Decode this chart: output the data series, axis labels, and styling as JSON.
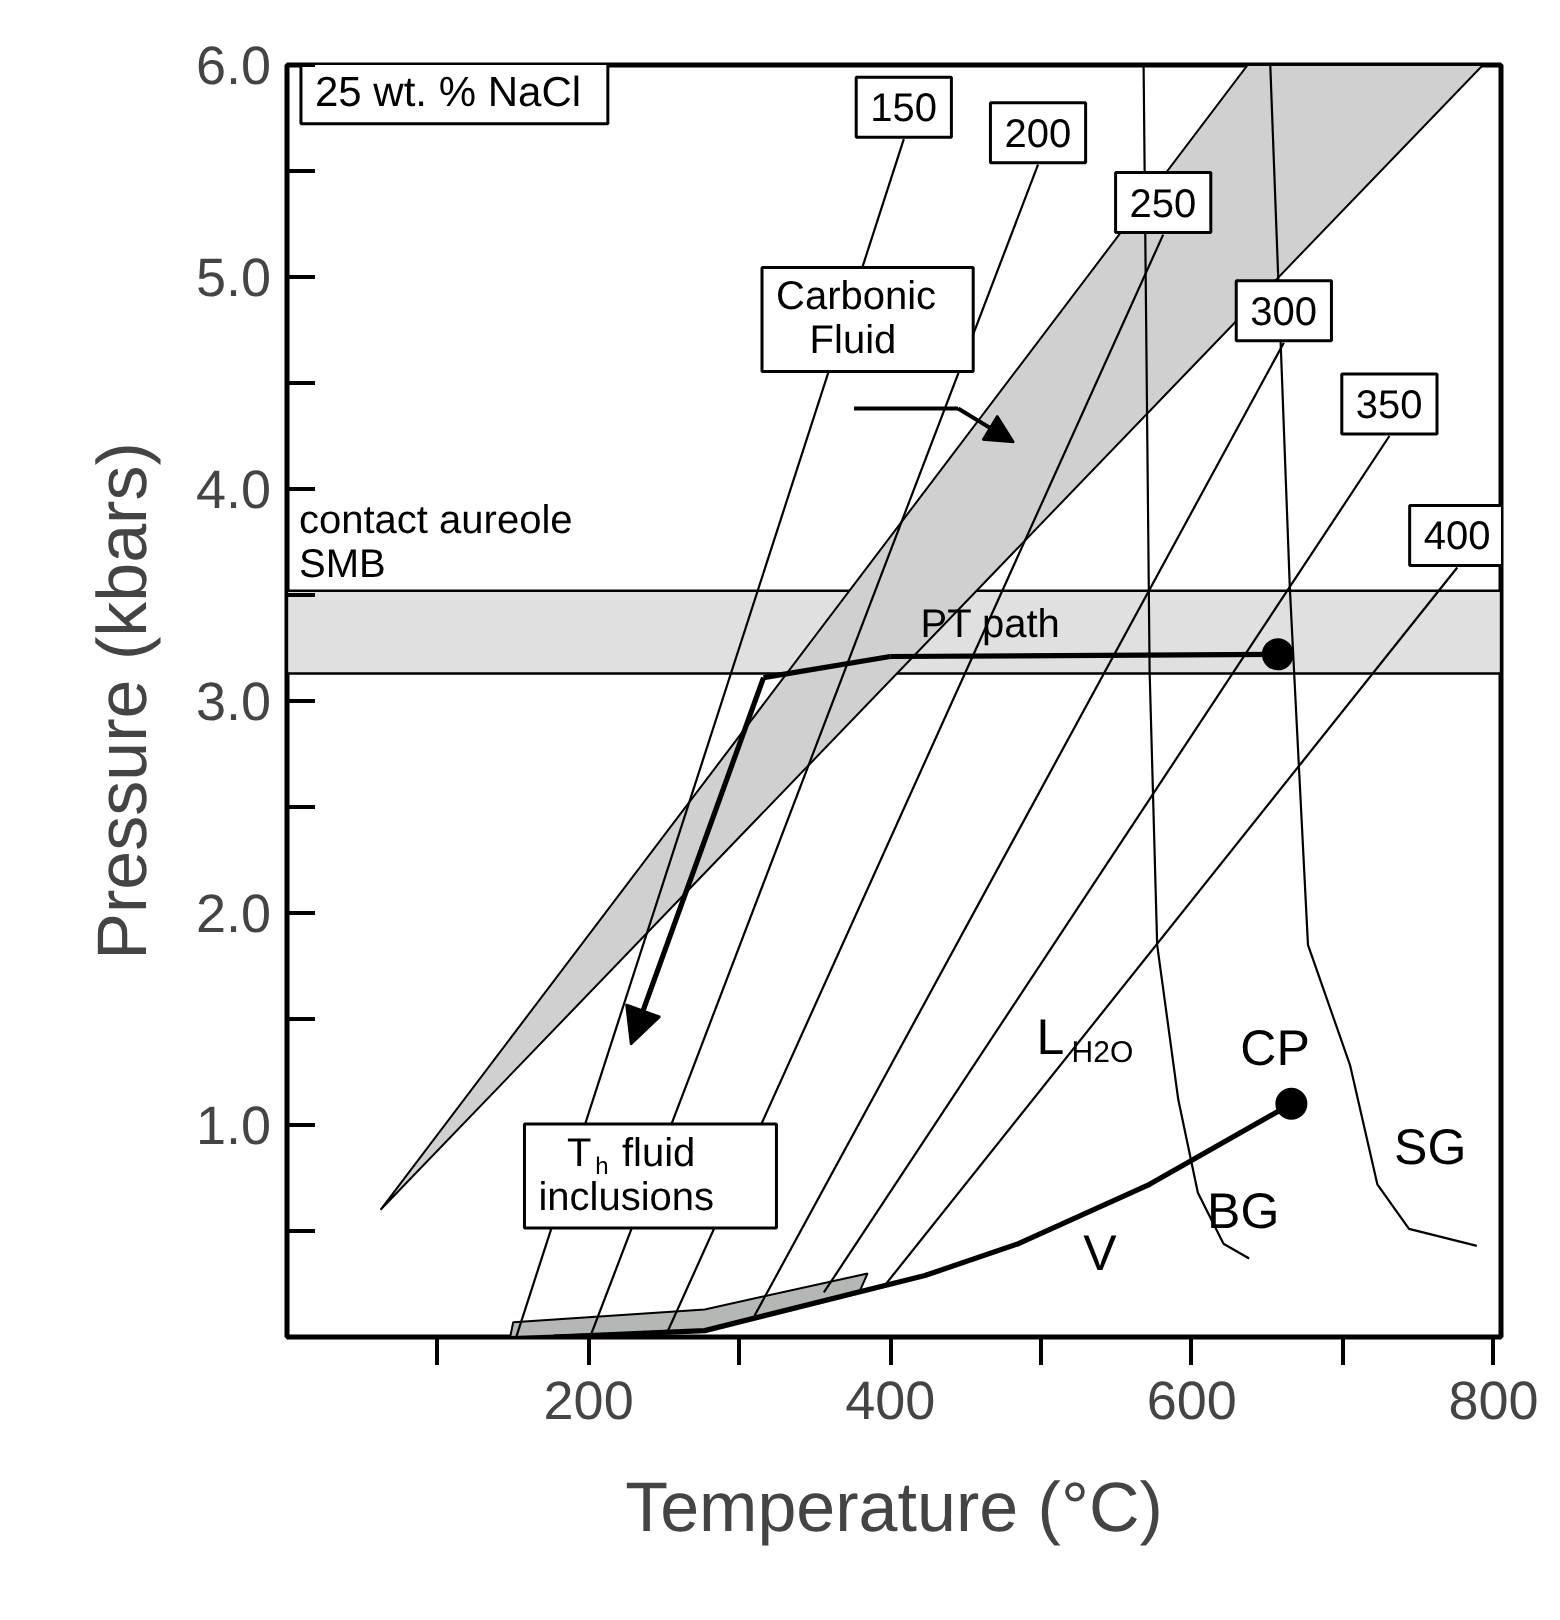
{
  "chart_data": {
    "type": "line",
    "xlabel": "Temperature (°C)",
    "ylabel": "Pressure (kbars)",
    "xlim": [
      0,
      805
    ],
    "ylim": [
      0,
      6
    ],
    "xticks": [
      {
        "value": 100,
        "label": null
      },
      200,
      {
        "value": 300,
        "label": null
      },
      400,
      {
        "value": 500,
        "label": null
      },
      600,
      {
        "value": 700,
        "label": null
      },
      800
    ],
    "yticks": [
      {
        "value": 0.5,
        "label": null
      },
      {
        "value": 1,
        "label": "1.0"
      },
      {
        "value": 1.5,
        "label": null
      },
      {
        "value": 2,
        "label": "2.0"
      },
      {
        "value": 2.5,
        "label": null
      },
      {
        "value": 3,
        "label": "3.0"
      },
      {
        "value": 3.5,
        "label": null
      },
      {
        "value": 4,
        "label": "4.0"
      },
      {
        "value": 4.5,
        "label": null
      },
      {
        "value": 5,
        "label": "5.0"
      },
      {
        "value": 5.5,
        "label": null
      },
      {
        "value": 6,
        "label": "6.0"
      }
    ],
    "series": [
      {
        "type": "area",
        "x": [
          62,
          637,
          793,
          62
        ],
        "values": [
          0.6,
          6.0,
          6.0,
          0.6
        ],
        "color": "#d0d0d0"
      },
      {
        "type": "area",
        "x": [
          150,
          277,
          385,
          380,
          277,
          148,
          150
        ],
        "values": [
          0.07,
          0.13,
          0.3,
          0.22,
          0.03,
          0.0,
          0.07
        ],
        "color": "#b4b8b4"
      },
      {
        "name": "150",
        "color": "#000000",
        "x": [
          152,
          409
        ],
        "values": [
          0.0,
          5.65
        ]
      },
      {
        "name": "200",
        "color": "#000000",
        "x": [
          201,
          498
        ],
        "values": [
          0.0,
          5.53
        ]
      },
      {
        "name": "250",
        "color": "#000000",
        "x": [
          252,
          581
        ],
        "values": [
          0.02,
          5.2
        ]
      },
      {
        "name": "300",
        "color": "#000000",
        "x": [
          310,
          661
        ],
        "values": [
          0.1,
          4.69
        ]
      },
      {
        "name": "350",
        "color": "#000000",
        "x": [
          356,
          731
        ],
        "values": [
          0.21,
          4.25
        ]
      },
      {
        "name": "400",
        "color": "#000000",
        "x": [
          396,
          776
        ],
        "values": [
          0.24,
          3.63
        ]
      },
      {
        "color": "#000000",
        "x": [
          568,
          572,
          577,
          591,
          604,
          621,
          638
        ],
        "values": [
          6.0,
          3.14,
          1.85,
          1.12,
          0.68,
          0.44,
          0.37
        ]
      },
      {
        "color": "#000000",
        "x": [
          652,
          665,
          677,
          705,
          723,
          744,
          789
        ],
        "values": [
          6.0,
          3.53,
          1.85,
          1.28,
          0.72,
          0.51,
          0.43
        ]
      },
      {
        "color": "#000000",
        "x": [
          177,
          277,
          423,
          485,
          572,
          666
        ],
        "values": [
          0.0,
          0.03,
          0.29,
          0.44,
          0.72,
          1.1
        ]
      },
      {
        "type": "scatter",
        "marker": "circle",
        "color": "#000000",
        "x": [
          657,
          666
        ],
        "values": [
          3.22,
          1.1
        ]
      }
    ],
    "bands": [
      {
        "axis": "y",
        "from": 3.13,
        "to": 3.52,
        "label": "contact aureole\nSMB",
        "color": "#e0e0e0"
      }
    ],
    "annotations": [
      "25 wt. % NaCl",
      "Carbonic\nFluid",
      "T$_{h}$ fluid\ninclusions",
      {
        "text": "PT path",
        "x": 471,
        "y": 3.36
      },
      {
        "text": "L$_{H2O}$",
        "x": 528,
        "y": 1.41
      },
      "V",
      "BG",
      "SG",
      {
        "text": "CP",
        "x": 666,
        "y": 1.1
      }
    ]
  }
}
